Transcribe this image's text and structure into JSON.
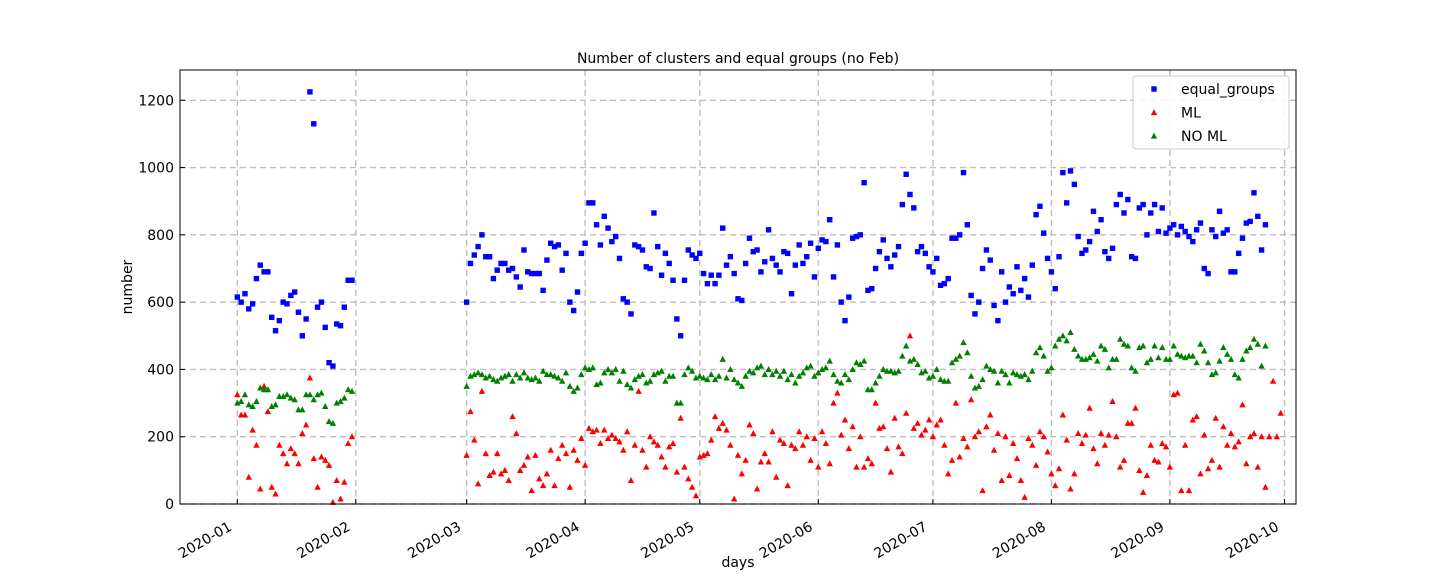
{
  "chart_data": {
    "type": "scatter",
    "title": "Number of clusters and equal groups (no Feb)",
    "xlabel": "days",
    "ylabel": "number",
    "x_axis": "date",
    "xlim": [
      "2019-12-17",
      "2020-10-04"
    ],
    "ylim": [
      0,
      1290
    ],
    "grid": true,
    "legend_position": "top-right",
    "x_ticks": [
      "2020-01",
      "2020-02",
      "2020-03",
      "2020-04",
      "2020-05",
      "2020-06",
      "2020-07",
      "2020-08",
      "2020-09",
      "2020-10"
    ],
    "x_tick_dates": [
      "2020-01-01",
      "2020-02-01",
      "2020-03-01",
      "2020-04-01",
      "2020-05-01",
      "2020-06-01",
      "2020-07-01",
      "2020-08-01",
      "2020-09-01",
      "2020-10-01"
    ],
    "y_ticks": [
      0,
      200,
      400,
      600,
      800,
      1000,
      1200
    ],
    "series": [
      {
        "name": "equal_groups",
        "color": "#0000ff",
        "marker": "square",
        "segments": [
          {
            "start": "2020-01-01",
            "values": [
              615,
              600,
              625,
              580,
              595,
              670,
              710,
              690,
              690,
              555,
              515,
              545,
              600,
              595,
              620,
              630,
              570,
              500,
              550,
              1225,
              1130,
              585,
              600,
              525,
              420,
              410,
              535,
              530,
              585,
              665,
              665
            ]
          },
          {
            "start": "2020-03-01",
            "values": [
              600,
              715,
              740,
              765,
              800,
              735,
              735,
              670,
              695,
              715,
              715,
              695,
              700,
              675,
              645,
              755,
              690,
              685,
              685,
              685,
              635,
              725,
              775,
              765,
              770,
              695,
              745,
              600,
              575,
              630,
              745,
              775,
              895,
              895,
              830,
              770,
              855,
              820,
              780,
              795,
              730,
              610,
              600,
              565,
              770,
              765,
              755,
              705,
              700,
              865,
              765,
              680,
              745,
              715,
              665,
              550,
              500,
              665,
              755,
              740,
              730,
              745,
              685,
              655,
              680,
              655,
              680,
              820,
              710,
              735,
              685,
              610,
              605,
              715,
              790,
              750,
              755,
              690,
              720,
              815,
              730,
              710,
              690,
              750,
              745,
              625,
              710,
              770,
              715,
              735,
              775,
              675,
              760,
              785,
              780,
              845,
              675,
              770,
              600,
              545,
              615,
              790,
              795,
              800,
              955,
              635,
              640,
              700,
              750,
              785,
              730,
              705,
              740,
              765,
              890,
              980,
              920,
              880,
              750,
              765,
              745,
              705,
              690,
              730,
              650,
              655,
              670,
              790,
              790,
              800,
              985,
              830,
              620,
              565,
              600,
              700,
              755,
              725,
              590,
              545,
              690,
              600,
              645,
              625,
              705,
              635,
              670,
              615,
              710,
              860,
              885,
              805,
              730,
              690,
              640,
              735,
              985,
              895,
              990,
              950,
              795,
              745,
              755,
              780,
              870,
              810,
              845,
              750,
              730,
              760,
              890,
              920,
              865,
              905,
              735,
              730,
              880,
              890,
              800,
              865,
              890,
              810,
              880,
              805,
              820,
              830,
              800,
              825,
              810,
              795,
              780,
              815,
              835,
              700,
              685,
              815,
              795,
              870,
              805,
              815,
              690,
              690,
              745,
              790,
              835,
              840,
              925,
              855,
              755,
              830
            ]
          }
        ]
      },
      {
        "name": "ML",
        "color": "#ff0000",
        "marker": "triangle",
        "segments": [
          {
            "start": "2020-01-01",
            "values": [
              325,
              265,
              265,
              80,
              220,
              175,
              45,
              350,
              275,
              50,
              30,
              175,
              150,
              120,
              165,
              150,
              120,
              210,
              235,
              375,
              135,
              50,
              140,
              130,
              115,
              5,
              70,
              15,
              65,
              180,
              200
            ]
          },
          {
            "start": "2020-03-01",
            "values": [
              145,
              275,
              190,
              60,
              335,
              150,
              85,
              95,
              150,
              90,
              100,
              70,
              260,
              210,
              100,
              115,
              140,
              40,
              145,
              75,
              55,
              90,
              160,
              55,
              135,
              175,
              150,
              50,
              160,
              130,
              195,
              115,
              225,
              215,
              220,
              180,
              220,
              195,
              205,
              195,
              185,
              160,
              215,
              70,
              175,
              335,
              160,
              110,
              200,
              185,
              175,
              140,
              110,
              170,
              180,
              95,
              255,
              110,
              75,
              50,
              25,
              140,
              145,
              150,
              190,
              260,
              225,
              240,
              220,
              175,
              15,
              145,
              90,
              130,
              235,
              210,
              45,
              125,
              150,
              125,
              215,
              80,
              190,
              180,
              55,
              175,
              165,
              215,
              175,
              200,
              130,
              195,
              110,
              215,
              180,
              120,
              300,
              330,
              205,
              250,
              165,
              230,
              110,
              200,
              110,
              135,
              120,
              300,
              225,
              230,
              165,
              95,
              255,
              170,
              150,
              270,
              500,
              225,
              240,
              205,
              220,
              250,
              200,
              235,
              250,
              175,
              90,
              130,
              300,
              140,
              195,
              170,
              310,
              200,
              215,
              40,
              230,
              265,
              160,
              210,
              70,
              200,
              85,
              180,
              135,
              70,
              20,
              195,
              175,
              115,
              215,
              200,
              155,
              90,
              55,
              105,
              265,
              190,
              45,
              90,
              210,
              180,
              205,
              285,
              165,
              120,
              210,
              175,
              205,
              305,
              200,
              110,
              130,
              240,
              240,
              285,
              100,
              35,
              85,
              175,
              130,
              125,
              180,
              170,
              110,
              325,
              330,
              40,
              175,
              40,
              250,
              260,
              90,
              205,
              105,
              130,
              255,
              110,
              230,
              175,
              210,
              170,
              185,
              295,
              120,
              200,
              210,
              110,
              200,
              50,
              200,
              365,
              200,
              270
            ]
          }
        ]
      },
      {
        "name": "NO ML",
        "color": "#008000",
        "marker": "triangle",
        "segments": [
          {
            "start": "2020-01-01",
            "values": [
              300,
              305,
              325,
              295,
              290,
              305,
              345,
              340,
              340,
              290,
              295,
              320,
              320,
              325,
              315,
              310,
              280,
              280,
              325,
              325,
              310,
              325,
              330,
              290,
              245,
              240,
              300,
              305,
              315,
              340,
              335
            ]
          },
          {
            "start": "2020-03-01",
            "values": [
              350,
              380,
              385,
              390,
              385,
              375,
              380,
              370,
              365,
              375,
              380,
              385,
              365,
              385,
              375,
              390,
              375,
              370,
              375,
              365,
              395,
              385,
              385,
              380,
              375,
              365,
              390,
              350,
              335,
              345,
              385,
              405,
              400,
              405,
              355,
              360,
              390,
              400,
              390,
              400,
              365,
              395,
              355,
              345,
              370,
              380,
              385,
              360,
              365,
              385,
              390,
              395,
              365,
              380,
              380,
              300,
              300,
              385,
              405,
              395,
              375,
              380,
              375,
              370,
              385,
              370,
              380,
              430,
              375,
              400,
              370,
              360,
              350,
              380,
              395,
              390,
              405,
              410,
              385,
              400,
              385,
              395,
              380,
              395,
              370,
              385,
              360,
              380,
              390,
              405,
              410,
              380,
              390,
              400,
              405,
              425,
              385,
              365,
              360,
              385,
              370,
              400,
              420,
              415,
              425,
              340,
              340,
              360,
              380,
              400,
              395,
              395,
              390,
              395,
              440,
              470,
              425,
              430,
              415,
              390,
              395,
              375,
              380,
              400,
              370,
              365,
              365,
              420,
              430,
              440,
              480,
              450,
              380,
              345,
              350,
              370,
              410,
              400,
              395,
              360,
              395,
              385,
              360,
              390,
              385,
              380,
              385,
              370,
              395,
              450,
              465,
              440,
              395,
              405,
              470,
              490,
              500,
              485,
              510,
              460,
              440,
              430,
              430,
              435,
              445,
              425,
              470,
              460,
              405,
              430,
              430,
              490,
              475,
              470,
              405,
              395,
              465,
              470,
              420,
              430,
              470,
              435,
              465,
              430,
              430,
              470,
              445,
              440,
              435,
              440,
              440,
              420,
              475,
              455,
              420,
              385,
              390,
              425,
              465,
              445,
              430,
              385,
              375,
              430,
              455,
              465,
              490,
              475,
              410,
              470
            ]
          }
        ]
      }
    ]
  }
}
